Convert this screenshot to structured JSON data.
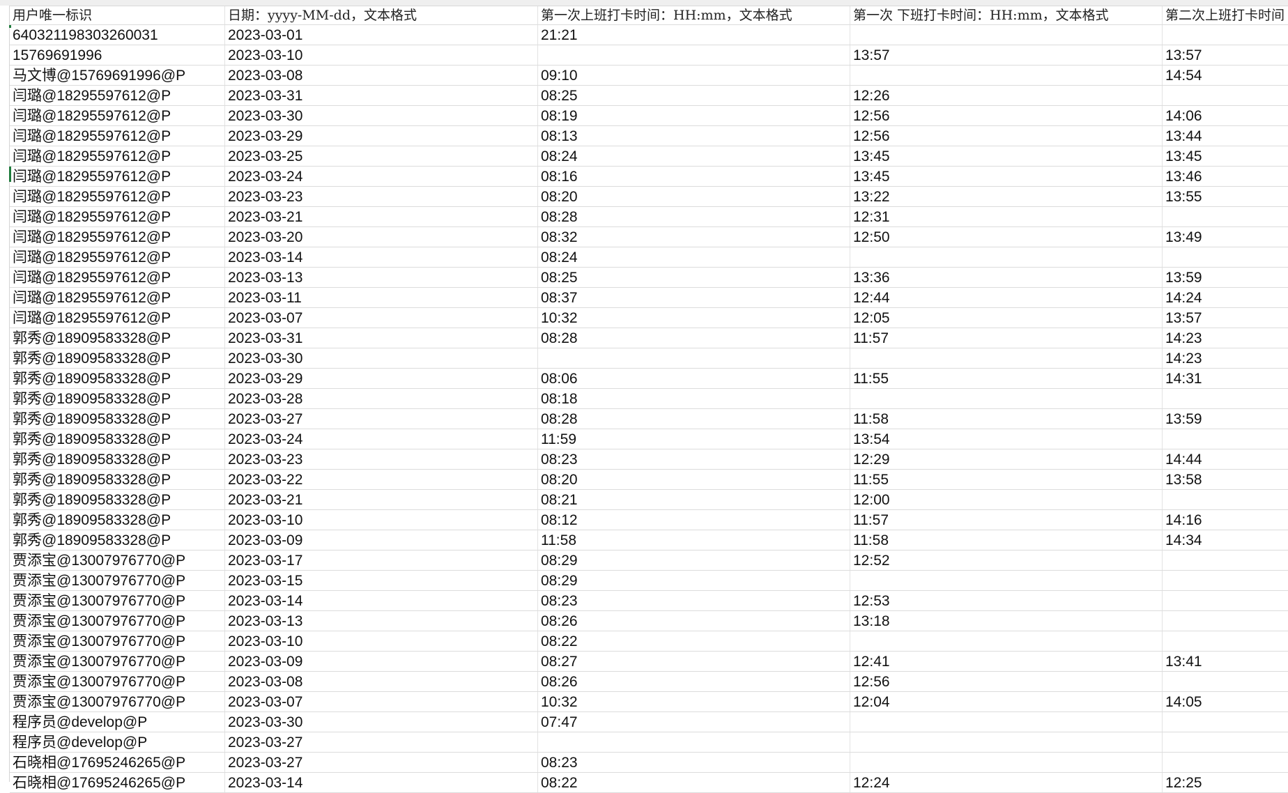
{
  "columns": [
    "用户唯一标识",
    "日期：yyyy-MM-dd，文本格式",
    "第一次上班打卡时间：HH:mm，文本格式",
    "第一次 下班打卡时间：HH:mm，文本格式",
    "第二次上班打卡时间"
  ],
  "rows": [
    [
      "640321198303260031",
      "2023-03-01",
      "21:21",
      "",
      ""
    ],
    [
      "15769691996",
      "2023-03-10",
      "",
      "13:57",
      "13:57"
    ],
    [
      "马文博@15769691996@P",
      "2023-03-08",
      "09:10",
      "",
      "14:54"
    ],
    [
      "闫璐@18295597612@P",
      "2023-03-31",
      "08:25",
      "12:26",
      ""
    ],
    [
      "闫璐@18295597612@P",
      "2023-03-30",
      "08:19",
      "12:56",
      "14:06"
    ],
    [
      "闫璐@18295597612@P",
      "2023-03-29",
      "08:13",
      "12:56",
      "13:44"
    ],
    [
      "闫璐@18295597612@P",
      "2023-03-25",
      "08:24",
      "13:45",
      "13:45"
    ],
    [
      "闫璐@18295597612@P",
      "2023-03-24",
      "08:16",
      "13:45",
      "13:46"
    ],
    [
      "闫璐@18295597612@P",
      "2023-03-23",
      "08:20",
      "13:22",
      "13:55"
    ],
    [
      "闫璐@18295597612@P",
      "2023-03-21",
      "08:28",
      "12:31",
      ""
    ],
    [
      "闫璐@18295597612@P",
      "2023-03-20",
      "08:32",
      "12:50",
      "13:49"
    ],
    [
      "闫璐@18295597612@P",
      "2023-03-14",
      "08:24",
      "",
      ""
    ],
    [
      "闫璐@18295597612@P",
      "2023-03-13",
      "08:25",
      "13:36",
      "13:59"
    ],
    [
      "闫璐@18295597612@P",
      "2023-03-11",
      "08:37",
      "12:44",
      "14:24"
    ],
    [
      "闫璐@18295597612@P",
      "2023-03-07",
      "10:32",
      "12:05",
      "13:57"
    ],
    [
      "郭秀@18909583328@P",
      "2023-03-31",
      "08:28",
      "11:57",
      "14:23"
    ],
    [
      "郭秀@18909583328@P",
      "2023-03-30",
      "",
      "",
      "14:23"
    ],
    [
      "郭秀@18909583328@P",
      "2023-03-29",
      "08:06",
      "11:55",
      "14:31"
    ],
    [
      "郭秀@18909583328@P",
      "2023-03-28",
      "08:18",
      "",
      ""
    ],
    [
      "郭秀@18909583328@P",
      "2023-03-27",
      "08:28",
      "11:58",
      "13:59"
    ],
    [
      "郭秀@18909583328@P",
      "2023-03-24",
      "11:59",
      "13:54",
      ""
    ],
    [
      "郭秀@18909583328@P",
      "2023-03-23",
      "08:23",
      "12:29",
      "14:44"
    ],
    [
      "郭秀@18909583328@P",
      "2023-03-22",
      "08:20",
      "11:55",
      "13:58"
    ],
    [
      "郭秀@18909583328@P",
      "2023-03-21",
      "08:21",
      "12:00",
      ""
    ],
    [
      "郭秀@18909583328@P",
      "2023-03-10",
      "08:12",
      "11:57",
      "14:16"
    ],
    [
      "郭秀@18909583328@P",
      "2023-03-09",
      "11:58",
      "11:58",
      "14:34"
    ],
    [
      "贾添宝@13007976770@P",
      "2023-03-17",
      "08:29",
      "12:52",
      ""
    ],
    [
      "贾添宝@13007976770@P",
      "2023-03-15",
      "08:29",
      "",
      ""
    ],
    [
      "贾添宝@13007976770@P",
      "2023-03-14",
      "08:23",
      "12:53",
      ""
    ],
    [
      "贾添宝@13007976770@P",
      "2023-03-13",
      "08:26",
      "13:18",
      ""
    ],
    [
      "贾添宝@13007976770@P",
      "2023-03-10",
      "08:22",
      "",
      ""
    ],
    [
      "贾添宝@13007976770@P",
      "2023-03-09",
      "08:27",
      "12:41",
      "13:41"
    ],
    [
      "贾添宝@13007976770@P",
      "2023-03-08",
      "08:26",
      "12:56",
      ""
    ],
    [
      "贾添宝@13007976770@P",
      "2023-03-07",
      "10:32",
      "12:04",
      "14:05"
    ],
    [
      "程序员@develop@P",
      "2023-03-30",
      "07:47",
      "",
      ""
    ],
    [
      "程序员@develop@P",
      "2023-03-27",
      "",
      "",
      ""
    ],
    [
      "石晓相@17695246265@P",
      "2023-03-27",
      "08:23",
      "",
      ""
    ],
    [
      "石晓相@17695246265@P",
      "2023-03-14",
      "08:22",
      "12:24",
      "12:25"
    ]
  ],
  "colors": {
    "gridline": "#dcdcdc",
    "header_strip": "#efefef",
    "selection_marker": "#1e7b3c"
  }
}
